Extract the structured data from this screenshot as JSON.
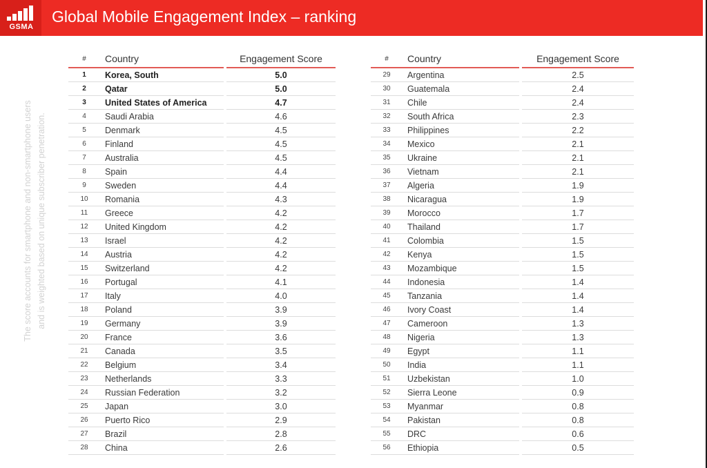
{
  "header": {
    "logo_text": "GSMA",
    "title": "Global Mobile Engagement Index – ranking"
  },
  "sidenote": {
    "line1": "The score accounts for smartphone and non-smartphone users",
    "line2": "and is weighted based on unique subscriber penetration."
  },
  "table": {
    "columns": {
      "rank": "#",
      "country": "Country",
      "score": "Engagement Score"
    },
    "left": [
      {
        "rank": "1",
        "country": "Korea, South",
        "score": "5.0"
      },
      {
        "rank": "2",
        "country": "Qatar",
        "score": "5.0"
      },
      {
        "rank": "3",
        "country": "United States of America",
        "score": "4.7"
      },
      {
        "rank": "4",
        "country": "Saudi Arabia",
        "score": "4.6"
      },
      {
        "rank": "5",
        "country": "Denmark",
        "score": "4.5"
      },
      {
        "rank": "6",
        "country": "Finland",
        "score": "4.5"
      },
      {
        "rank": "7",
        "country": "Australia",
        "score": "4.5"
      },
      {
        "rank": "8",
        "country": "Spain",
        "score": "4.4"
      },
      {
        "rank": "9",
        "country": "Sweden",
        "score": "4.4"
      },
      {
        "rank": "10",
        "country": "Romania",
        "score": "4.3"
      },
      {
        "rank": "11",
        "country": "Greece",
        "score": "4.2"
      },
      {
        "rank": "12",
        "country": "United Kingdom",
        "score": "4.2"
      },
      {
        "rank": "13",
        "country": "Israel",
        "score": "4.2"
      },
      {
        "rank": "14",
        "country": "Austria",
        "score": "4.2"
      },
      {
        "rank": "15",
        "country": "Switzerland",
        "score": "4.2"
      },
      {
        "rank": "16",
        "country": "Portugal",
        "score": "4.1"
      },
      {
        "rank": "17",
        "country": "Italy",
        "score": "4.0"
      },
      {
        "rank": "18",
        "country": "Poland",
        "score": "3.9"
      },
      {
        "rank": "19",
        "country": "Germany",
        "score": "3.9"
      },
      {
        "rank": "20",
        "country": "France",
        "score": "3.6"
      },
      {
        "rank": "21",
        "country": "Canada",
        "score": "3.5"
      },
      {
        "rank": "22",
        "country": "Belgium",
        "score": "3.4"
      },
      {
        "rank": "23",
        "country": "Netherlands",
        "score": "3.3"
      },
      {
        "rank": "24",
        "country": "Russian Federation",
        "score": "3.2"
      },
      {
        "rank": "25",
        "country": "Japan",
        "score": "3.0"
      },
      {
        "rank": "26",
        "country": "Puerto Rico",
        "score": "2.9"
      },
      {
        "rank": "27",
        "country": "Brazil",
        "score": "2.8"
      },
      {
        "rank": "28",
        "country": "China",
        "score": "2.6"
      }
    ],
    "right": [
      {
        "rank": "29",
        "country": "Argentina",
        "score": "2.5"
      },
      {
        "rank": "30",
        "country": "Guatemala",
        "score": "2.4"
      },
      {
        "rank": "31",
        "country": "Chile",
        "score": "2.4"
      },
      {
        "rank": "32",
        "country": "South Africa",
        "score": "2.3"
      },
      {
        "rank": "33",
        "country": "Philippines",
        "score": "2.2"
      },
      {
        "rank": "34",
        "country": "Mexico",
        "score": "2.1"
      },
      {
        "rank": "35",
        "country": "Ukraine",
        "score": "2.1"
      },
      {
        "rank": "36",
        "country": "Vietnam",
        "score": "2.1"
      },
      {
        "rank": "37",
        "country": "Algeria",
        "score": "1.9"
      },
      {
        "rank": "38",
        "country": "Nicaragua",
        "score": "1.9"
      },
      {
        "rank": "39",
        "country": "Morocco",
        "score": "1.7"
      },
      {
        "rank": "40",
        "country": "Thailand",
        "score": "1.7"
      },
      {
        "rank": "41",
        "country": "Colombia",
        "score": "1.5"
      },
      {
        "rank": "42",
        "country": "Kenya",
        "score": "1.5"
      },
      {
        "rank": "43",
        "country": "Mozambique",
        "score": "1.5"
      },
      {
        "rank": "44",
        "country": "Indonesia",
        "score": "1.4"
      },
      {
        "rank": "45",
        "country": "Tanzania",
        "score": "1.4"
      },
      {
        "rank": "46",
        "country": "Ivory Coast",
        "score": "1.4"
      },
      {
        "rank": "47",
        "country": "Cameroon",
        "score": "1.3"
      },
      {
        "rank": "48",
        "country": "Nigeria",
        "score": "1.3"
      },
      {
        "rank": "49",
        "country": "Egypt",
        "score": "1.1"
      },
      {
        "rank": "50",
        "country": "India",
        "score": "1.1"
      },
      {
        "rank": "51",
        "country": "Uzbekistan",
        "score": "1.0"
      },
      {
        "rank": "52",
        "country": "Sierra Leone",
        "score": "0.9"
      },
      {
        "rank": "53",
        "country": "Myanmar",
        "score": "0.8"
      },
      {
        "rank": "54",
        "country": "Pakistan",
        "score": "0.8"
      },
      {
        "rank": "55",
        "country": "DRC",
        "score": "0.6"
      },
      {
        "rank": "56",
        "country": "Ethiopia",
        "score": "0.5"
      }
    ]
  },
  "colors": {
    "brand_red": "#ed2b24",
    "header_rule": "#e25a55"
  }
}
